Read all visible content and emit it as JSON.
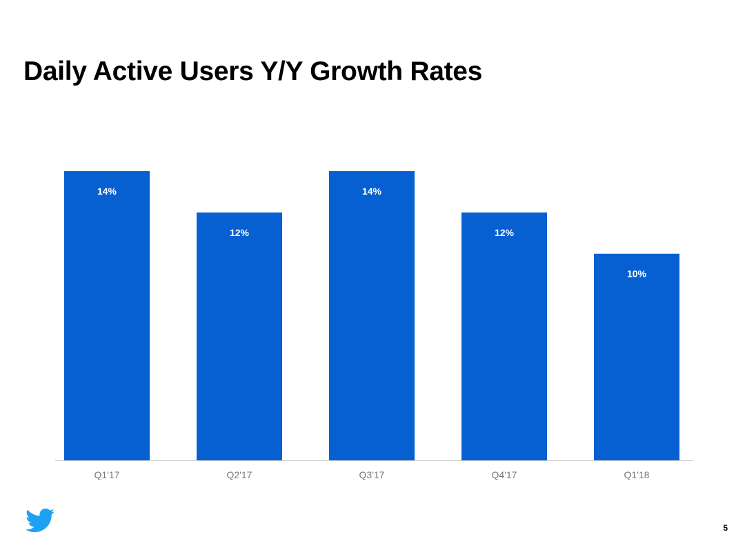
{
  "slide": {
    "title": "Daily Active Users Y/Y Growth Rates",
    "page_number": "5"
  },
  "colors": {
    "bar": "#0660d2",
    "axis": "#cccccc",
    "tick_text": "#777777"
  },
  "chart_data": {
    "type": "bar",
    "title": "Daily Active Users Y/Y Growth Rates",
    "xlabel": "",
    "ylabel": "",
    "ylim": [
      0,
      14
    ],
    "grid": false,
    "categories": [
      "Q1'17",
      "Q2'17",
      "Q3'17",
      "Q4'17",
      "Q1'18"
    ],
    "values": [
      14,
      12,
      14,
      12,
      10
    ],
    "data_labels": [
      "14%",
      "12%",
      "14%",
      "12%",
      "10%"
    ]
  }
}
